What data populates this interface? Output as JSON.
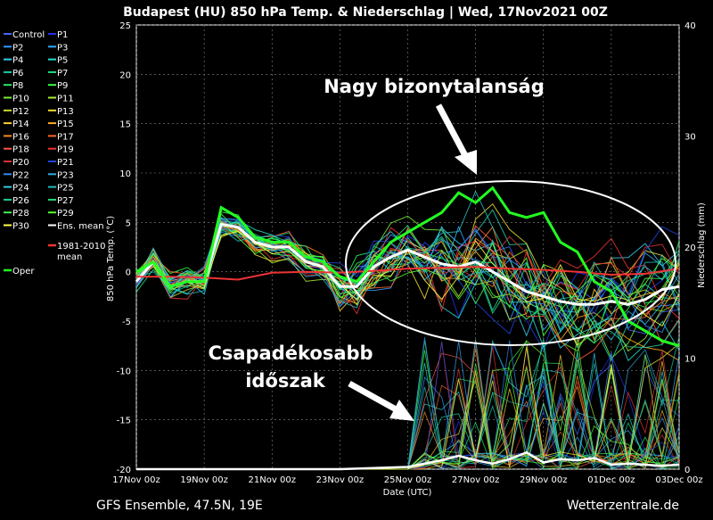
{
  "chart_data": {
    "type": "line",
    "title": "Budapest  (HU)  850 hPa Temp. & Niederschlag | Wed, 17Nov2021 00Z",
    "ylabel": "850 hPa Temp. (°C)",
    "y2label": "Niederschlag (mm)",
    "xlabel": "Date (UTC)",
    "ylim": [
      -20,
      25
    ],
    "y2lim": [
      0,
      40
    ],
    "xlim": [
      0,
      16
    ],
    "x_ticks": [
      "17Nov 00z",
      "19Nov 00z",
      "21Nov 00z",
      "23Nov 00z",
      "25Nov 00z",
      "27Nov 00z",
      "29Nov 00z",
      "01Dec 00z",
      "03Dec 00z"
    ],
    "y_ticks": [
      25,
      20,
      15,
      10,
      5,
      0,
      -5,
      -10,
      -15,
      -20
    ],
    "y2_ticks": [
      40,
      30,
      20,
      10,
      0
    ],
    "grid": true,
    "legend_position": "left",
    "legend": [
      {
        "name": "Control",
        "color": "#4466ff"
      },
      {
        "name": "P1",
        "color": "#2233ee"
      },
      {
        "name": "P2",
        "color": "#3399ff"
      },
      {
        "name": "P3",
        "color": "#33aaff"
      },
      {
        "name": "P4",
        "color": "#33ccee"
      },
      {
        "name": "P5",
        "color": "#22ddcc"
      },
      {
        "name": "P6",
        "color": "#22ccaa"
      },
      {
        "name": "P7",
        "color": "#22dd88"
      },
      {
        "name": "P8",
        "color": "#22ee66"
      },
      {
        "name": "P9",
        "color": "#33ff44"
      },
      {
        "name": "P10",
        "color": "#77ee33"
      },
      {
        "name": "P11",
        "color": "#aaee33"
      },
      {
        "name": "P12",
        "color": "#ccdd33"
      },
      {
        "name": "P13",
        "color": "#eedd33"
      },
      {
        "name": "P14",
        "color": "#ffcc33"
      },
      {
        "name": "P15",
        "color": "#ffaa22"
      },
      {
        "name": "P16",
        "color": "#ff8822"
      },
      {
        "name": "P17",
        "color": "#ff6622"
      },
      {
        "name": "P18",
        "color": "#ff5544"
      },
      {
        "name": "P19",
        "color": "#ee3333"
      },
      {
        "name": "P20",
        "color": "#dd3333"
      },
      {
        "name": "P21",
        "color": "#2244dd"
      },
      {
        "name": "P22",
        "color": "#3388ee"
      },
      {
        "name": "P23",
        "color": "#33aadd"
      },
      {
        "name": "P24",
        "color": "#33ccdd"
      },
      {
        "name": "P25",
        "color": "#22bbbb"
      },
      {
        "name": "P26",
        "color": "#22cc99"
      },
      {
        "name": "P27",
        "color": "#22dd77"
      },
      {
        "name": "P28",
        "color": "#44ee55"
      },
      {
        "name": "P29",
        "color": "#55ff33"
      },
      {
        "name": "P30",
        "color": "#ffff44"
      },
      {
        "name": "Ens. mean",
        "color": "#ffffff"
      },
      {
        "name": "1981-2010 mean",
        "color": "#ee3333"
      },
      {
        "name": "Oper",
        "color": "#22ff22"
      }
    ],
    "series": [
      {
        "name": "Ens. mean",
        "color": "#ffffff",
        "x": [
          0,
          0.5,
          1,
          1.5,
          2,
          2.5,
          3,
          3.5,
          4,
          4.5,
          5,
          5.5,
          6,
          6.5,
          7,
          7.5,
          8,
          8.5,
          9,
          9.5,
          10,
          10.5,
          11,
          11.5,
          12,
          12.5,
          13,
          13.5,
          14,
          14.5,
          15,
          15.5,
          16
        ],
        "y": [
          -1,
          1,
          -1.5,
          -1,
          -1,
          4.8,
          4.5,
          3,
          2.5,
          2.5,
          1,
          0.5,
          -1.5,
          -1.5,
          0.5,
          1.5,
          2.2,
          1.5,
          0.8,
          0.5,
          1,
          0,
          -1,
          -2,
          -2.5,
          -3,
          -3.3,
          -3.3,
          -3,
          -3.3,
          -2.8,
          -1.8,
          -1.5
        ]
      },
      {
        "name": "1981-2010 mean",
        "color": "#ee3333",
        "x": [
          0,
          1,
          2,
          3,
          4,
          5,
          6,
          7,
          8,
          9,
          10,
          11,
          12,
          13,
          14,
          15,
          16
        ],
        "y": [
          -0.5,
          -0.5,
          -0.6,
          -0.8,
          -0.1,
          0,
          -0.1,
          0.1,
          0.3,
          0.4,
          0.5,
          0.3,
          0.2,
          0,
          -0.3,
          -0.2,
          0.3
        ]
      },
      {
        "name": "Oper",
        "color": "#22ff22",
        "x": [
          0,
          0.5,
          1,
          1.5,
          2,
          2.5,
          3,
          3.5,
          4,
          4.5,
          5,
          5.5,
          6,
          6.5,
          7,
          7.5,
          8,
          8.5,
          9,
          9.5,
          10,
          10.5,
          11,
          11.5,
          12,
          12.5,
          13,
          13.5,
          14,
          14.5,
          15,
          15.5,
          16
        ],
        "y": [
          0,
          1,
          -1.5,
          -1,
          -1,
          6.5,
          5.5,
          3.5,
          3,
          3,
          1.5,
          1,
          -0.5,
          -1,
          1,
          3,
          4,
          5,
          6,
          8,
          7,
          8.5,
          6,
          5.5,
          6,
          3,
          2,
          -1,
          -2,
          -5,
          -6,
          -7,
          -7.5
        ]
      }
    ],
    "precip_mean": {
      "name": "Ens. mean precip",
      "x": [
        0,
        2,
        4,
        6,
        8,
        9,
        9.5,
        10,
        10.5,
        11,
        11.5,
        12,
        12.5,
        13,
        13.5,
        14,
        14.5,
        15,
        15.5,
        16
      ],
      "y_mm": [
        0,
        0,
        0,
        0,
        0.2,
        0.8,
        1.2,
        0.8,
        0.5,
        0.9,
        1.5,
        0.6,
        0.9,
        0.8,
        1.0,
        0.4,
        0.5,
        0.4,
        0.3,
        0.4
      ]
    }
  },
  "annotations": {
    "uncertainty": "Nagy bizonytalanság",
    "wetter_line1": "Csapadékosabb",
    "wetter_line2": "időszak"
  },
  "footer": {
    "left": "GFS Ensemble, 47.5N, 19E",
    "right": "Wetterzentrale.de"
  },
  "colors": {
    "background": "#000000",
    "grid": "#888888",
    "annotation": "#ffffff"
  }
}
